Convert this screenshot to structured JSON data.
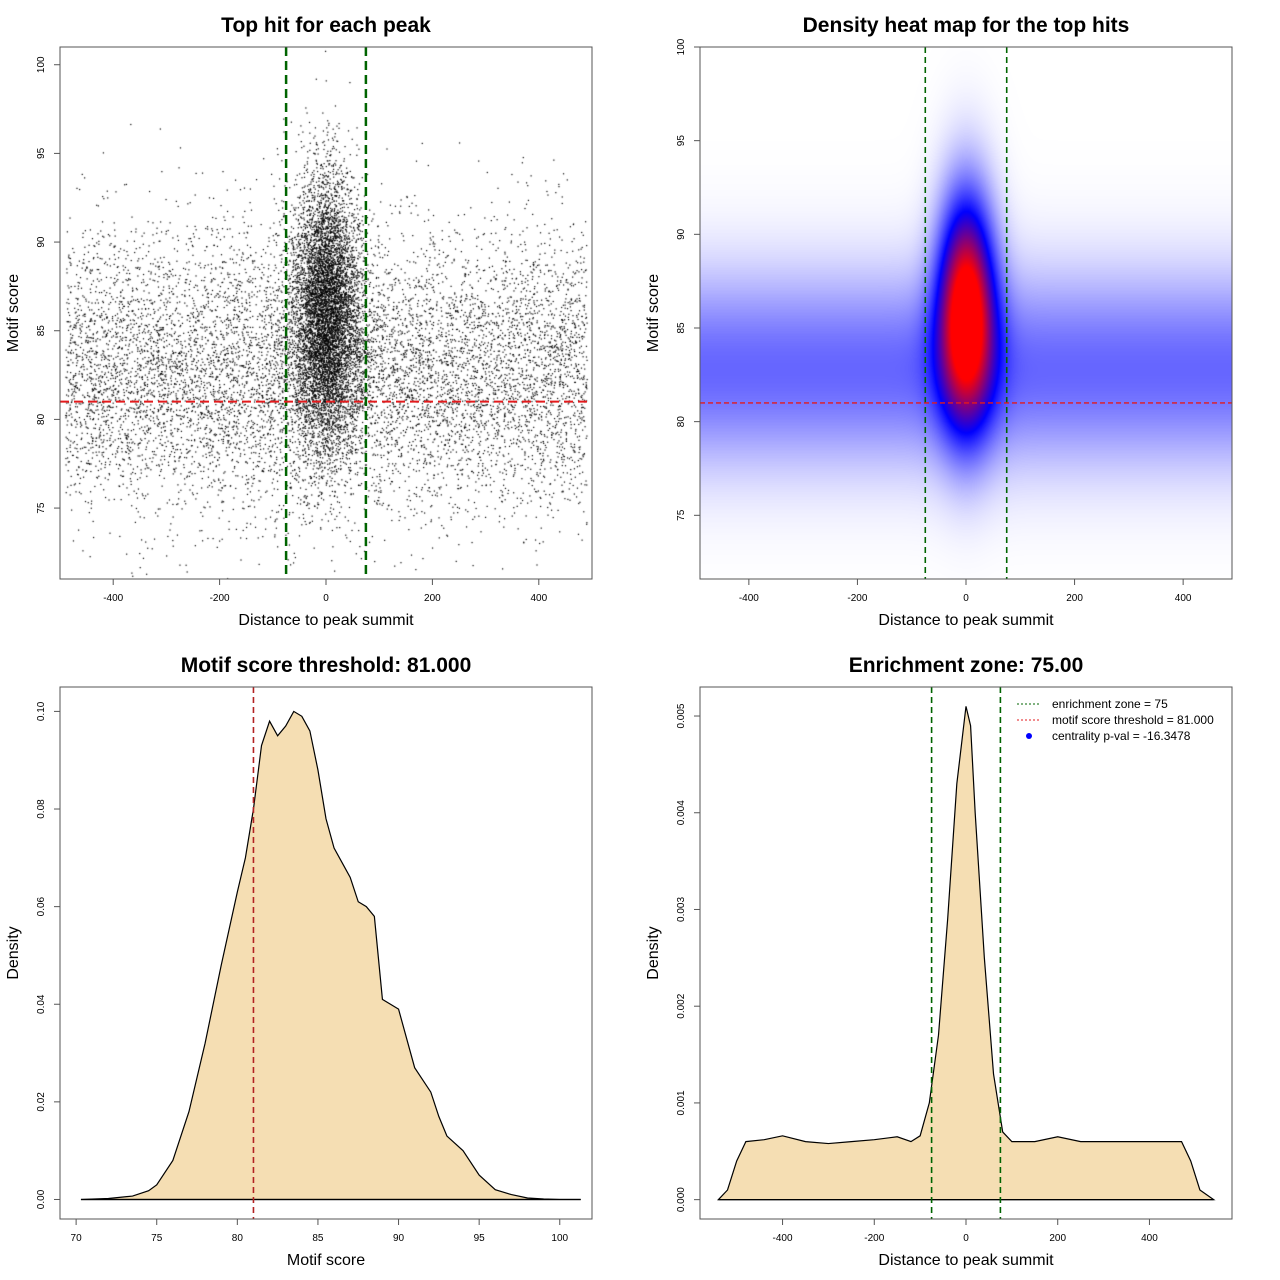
{
  "chart_data": [
    {
      "type": "scatter",
      "title": "Top hit for each peak",
      "xlabel": "Distance to peak summit",
      "ylabel": "Motif score",
      "xlim": [
        -500,
        500
      ],
      "ylim": [
        71,
        101
      ],
      "xticks": [
        -400,
        -200,
        0,
        200,
        400
      ],
      "yticks": [
        75,
        80,
        85,
        90,
        95,
        100
      ],
      "vlines": {
        "values": [
          -75,
          75
        ],
        "color": "#006400",
        "style": "dashed"
      },
      "hline": {
        "value": 81,
        "color": "#e31a1c",
        "style": "dashed"
      },
      "point_color": "#000000",
      "grid": false
    },
    {
      "type": "heatmap",
      "title": "Density heat map for the top hits",
      "xlabel": "Distance to peak summit",
      "ylabel": "Motif score",
      "xlim": [
        -490,
        490
      ],
      "ylim": [
        71.6,
        100
      ],
      "xticks": [
        -400,
        -200,
        0,
        200,
        400
      ],
      "yticks": [
        75,
        80,
        85,
        90,
        95,
        100
      ],
      "colors": [
        "#ffffff",
        "#0000ff",
        "#ff0000"
      ],
      "vlines": {
        "values": [
          -75,
          75
        ],
        "color": "#006400",
        "style": "dashed"
      },
      "hline": {
        "value": 81,
        "color": "#e31a1c",
        "style": "dashed"
      },
      "grid": false
    },
    {
      "type": "area",
      "title": "Motif score threshold: 81.000",
      "xlabel": "Motif score",
      "ylabel": "Density",
      "xlim": [
        69,
        102
      ],
      "ylim": [
        -0.004,
        0.105
      ],
      "xticks": [
        70,
        75,
        80,
        85,
        90,
        95,
        100
      ],
      "yticks": [
        0.0,
        0.02,
        0.04,
        0.06,
        0.08,
        0.1
      ],
      "fill": "#f5deb3",
      "vline": {
        "value": 81,
        "color": "#b22222",
        "style": "dashed"
      },
      "x": [
        70.3,
        72,
        73.5,
        74.5,
        75,
        76,
        77,
        78,
        79,
        80,
        80.5,
        81,
        81.5,
        82,
        82.5,
        83,
        83.5,
        84,
        84.5,
        85,
        85.5,
        86,
        86.5,
        87,
        87.5,
        88,
        88.5,
        89,
        89.5,
        90,
        90.5,
        91,
        92,
        92.5,
        93,
        94,
        95,
        96,
        97,
        98,
        99,
        100,
        101.3
      ],
      "y": [
        0,
        0.0002,
        0.0007,
        0.0018,
        0.003,
        0.008,
        0.018,
        0.032,
        0.048,
        0.063,
        0.07,
        0.08,
        0.093,
        0.098,
        0.095,
        0.097,
        0.1,
        0.099,
        0.096,
        0.088,
        0.078,
        0.072,
        0.069,
        0.066,
        0.061,
        0.06,
        0.058,
        0.041,
        0.04,
        0.039,
        0.033,
        0.027,
        0.022,
        0.017,
        0.013,
        0.01,
        0.005,
        0.002,
        0.001,
        0.0003,
        0.0001,
        0,
        0
      ]
    },
    {
      "type": "area",
      "title": "Enrichment zone: 75.00",
      "xlabel": "Distance to peak summit",
      "ylabel": "Density",
      "xlim": [
        -580,
        580
      ],
      "ylim": [
        -0.0002,
        0.0053
      ],
      "xticks": [
        -400,
        -200,
        0,
        200,
        400
      ],
      "yticks": [
        0.0,
        0.001,
        0.002,
        0.003,
        0.004,
        0.005
      ],
      "fill": "#f5deb3",
      "vlines": {
        "values": [
          -75,
          75
        ],
        "color": "#006400",
        "style": "dashed"
      },
      "x": [
        -540,
        -520,
        -500,
        -480,
        -440,
        -400,
        -350,
        -300,
        -250,
        -200,
        -150,
        -120,
        -100,
        -80,
        -60,
        -40,
        -20,
        0,
        10,
        20,
        40,
        60,
        80,
        100,
        150,
        200,
        250,
        300,
        350,
        400,
        440,
        470,
        490,
        510,
        540
      ],
      "y": [
        0,
        0.0001,
        0.0004,
        0.0006,
        0.00062,
        0.00066,
        0.0006,
        0.00058,
        0.0006,
        0.00062,
        0.00065,
        0.0006,
        0.00066,
        0.001,
        0.0017,
        0.0029,
        0.0043,
        0.0051,
        0.0049,
        0.004,
        0.0025,
        0.0013,
        0.0007,
        0.0006,
        0.0006,
        0.00065,
        0.0006,
        0.0006,
        0.0006,
        0.0006,
        0.0006,
        0.0006,
        0.0004,
        0.0001,
        0
      ],
      "legend": {
        "position": "top-right",
        "entries": [
          {
            "label": "enrichment zone = 75",
            "color": "#006400",
            "symbol": "dotted-line"
          },
          {
            "label": "motif score threshold = 81.000",
            "color": "#e31a1c",
            "symbol": "dotted-line"
          },
          {
            "label": "centrality p-val = -16.3478",
            "color": "#0000ff",
            "symbol": "dot"
          }
        ]
      }
    }
  ]
}
